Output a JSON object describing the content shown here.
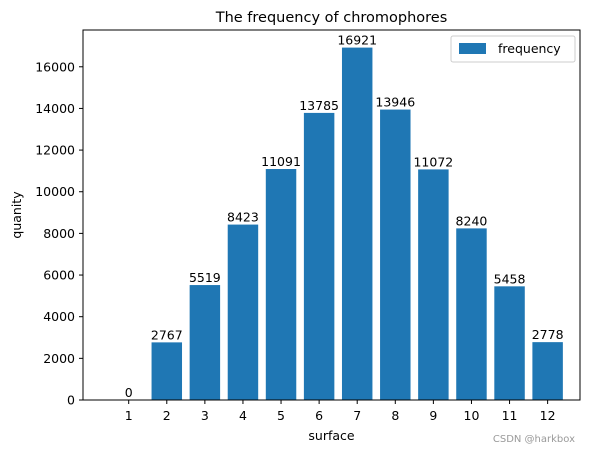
{
  "chart_data": {
    "type": "bar",
    "title": "The frequency of chromophores",
    "xlabel": "surface",
    "ylabel": "quanity",
    "categories": [
      "1",
      "2",
      "3",
      "4",
      "5",
      "6",
      "7",
      "8",
      "9",
      "10",
      "11",
      "12"
    ],
    "series": [
      {
        "name": "frequency",
        "values": [
          0,
          2767,
          5519,
          8423,
          11091,
          13785,
          16921,
          13946,
          11072,
          8240,
          5458,
          2778
        ]
      }
    ],
    "data_labels": [
      "0",
      "2767",
      "5519",
      "8423",
      "11091",
      "13785",
      "16921",
      "13946",
      "11072",
      "8240",
      "5458",
      "2778"
    ],
    "ylim": [
      0,
      17766
    ],
    "yticks": [
      0,
      2000,
      4000,
      6000,
      8000,
      10000,
      12000,
      14000,
      16000
    ],
    "ytick_labels": [
      "0",
      "2000",
      "4000",
      "6000",
      "8000",
      "10000",
      "12000",
      "14000",
      "16000"
    ],
    "grid": false,
    "legend_position": "top-right",
    "bar_color": "#1f77b4",
    "watermark": "CSDN @harkbox"
  }
}
